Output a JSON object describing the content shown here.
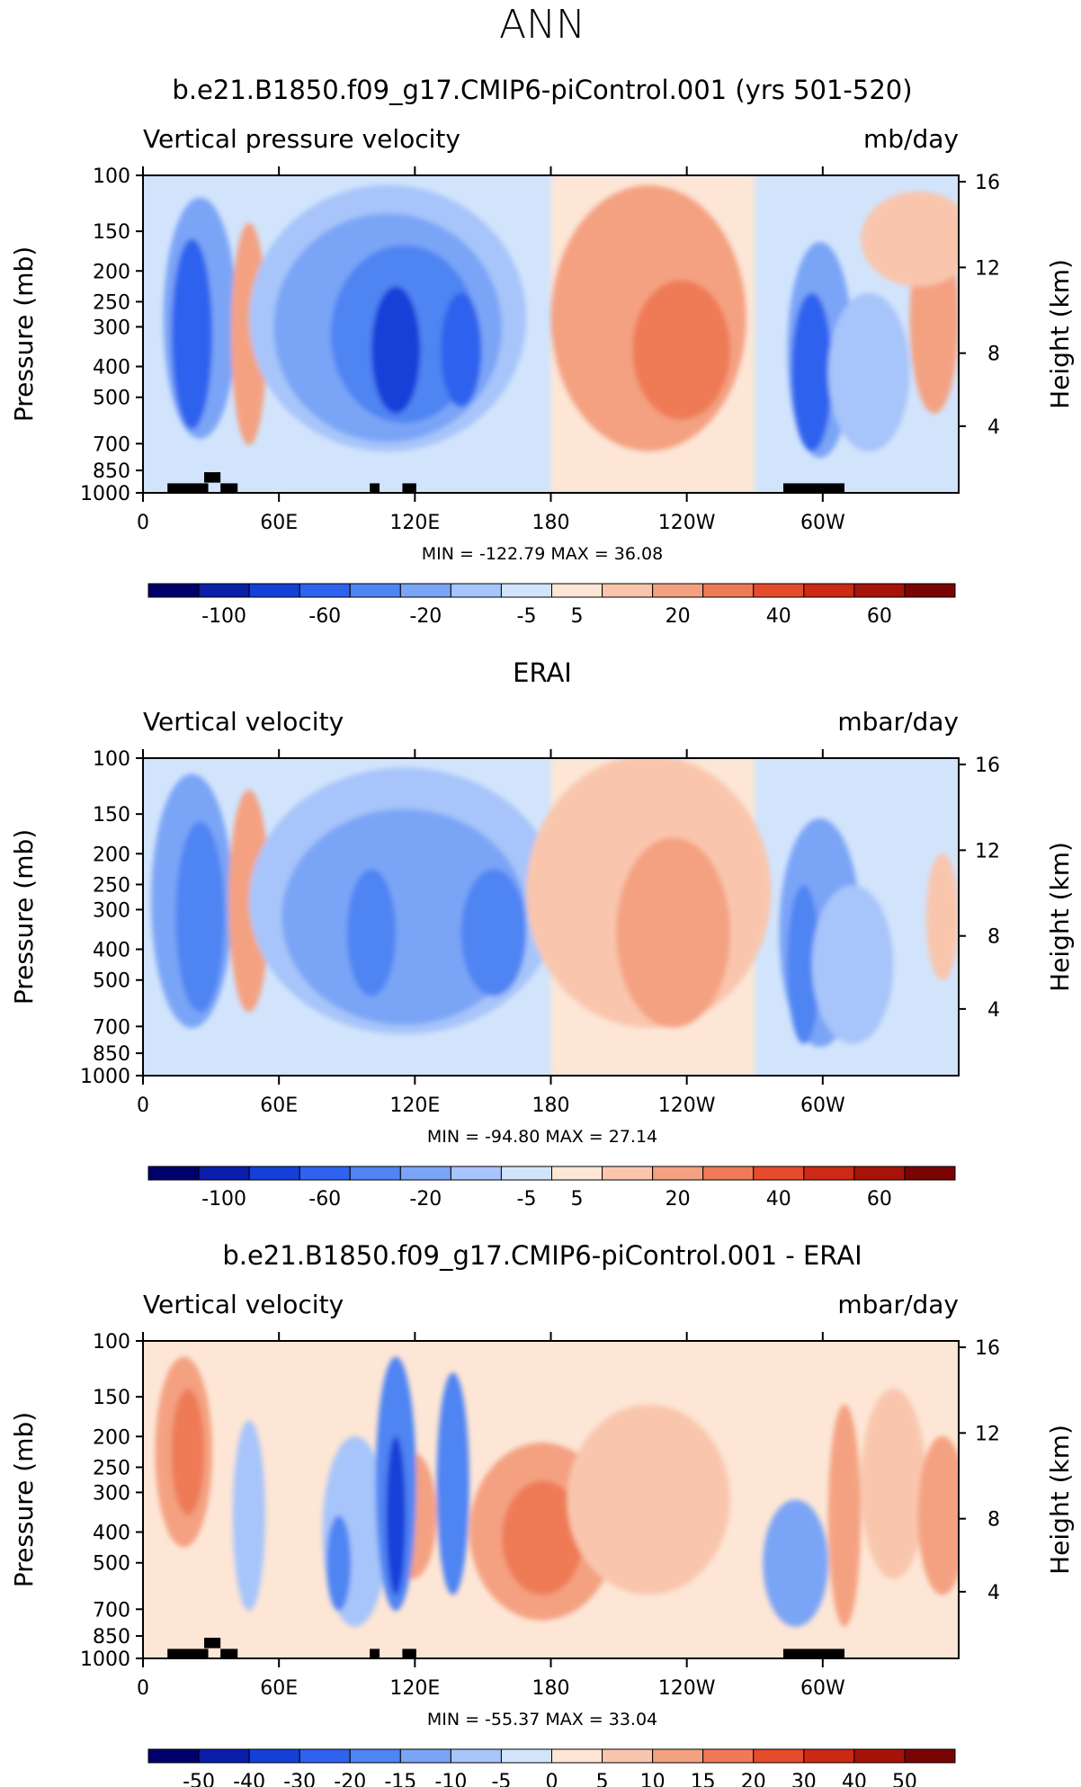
{
  "figure_title": "ANN",
  "chart_data": [
    {
      "type": "heatmap",
      "title": "b.e21.B1850.f09_g17.CMIP6-piControl.001 (yrs 501-520)",
      "subtitle_left": "Vertical pressure velocity",
      "units": "mb/day",
      "ylabel": "Pressure (mb)",
      "ylabel_right": "Height (km)",
      "y_ticks": [
        "100",
        "150",
        "200",
        "250",
        "300",
        "400",
        "500",
        "700",
        "850",
        "1000"
      ],
      "y_ticks_right": [
        "16",
        "12",
        "8",
        "4"
      ],
      "x_ticks": [
        "0",
        "60E",
        "120E",
        "180",
        "120W",
        "60W"
      ],
      "min": "-122.79",
      "max": "36.08",
      "colorbar_labels": [
        "-100",
        "-60",
        "-20",
        "-5",
        "5",
        "20",
        "40",
        "60"
      ],
      "colorbar_colors": [
        "#00006d",
        "#0a1eaa",
        "#1440d8",
        "#2f62ee",
        "#4f84f3",
        "#7aa4f6",
        "#a7c5fa",
        "#d2e4fc",
        "#fde6d6",
        "#f9c6ad",
        "#f4a181",
        "#ef7a57",
        "#e44c2c",
        "#cc2a14",
        "#a61409",
        "#7a0404"
      ]
    },
    {
      "type": "heatmap",
      "title": "ERAI",
      "subtitle_left": "Vertical velocity",
      "units": "mbar/day",
      "ylabel": "Pressure (mb)",
      "ylabel_right": "Height (km)",
      "y_ticks": [
        "100",
        "150",
        "200",
        "250",
        "300",
        "400",
        "500",
        "700",
        "850",
        "1000"
      ],
      "y_ticks_right": [
        "16",
        "12",
        "8",
        "4"
      ],
      "x_ticks": [
        "0",
        "60E",
        "120E",
        "180",
        "120W",
        "60W"
      ],
      "min": "-94.80",
      "max": "27.14",
      "colorbar_labels": [
        "-100",
        "-60",
        "-20",
        "-5",
        "5",
        "20",
        "40",
        "60"
      ],
      "colorbar_colors": [
        "#00006d",
        "#0a1eaa",
        "#1440d8",
        "#2f62ee",
        "#4f84f3",
        "#7aa4f6",
        "#a7c5fa",
        "#d2e4fc",
        "#fde6d6",
        "#f9c6ad",
        "#f4a181",
        "#ef7a57",
        "#e44c2c",
        "#cc2a14",
        "#a61409",
        "#7a0404"
      ]
    },
    {
      "type": "heatmap",
      "title": "b.e21.B1850.f09_g17.CMIP6-piControl.001 - ERAI",
      "subtitle_left": "Vertical velocity",
      "units": "mbar/day",
      "ylabel": "Pressure (mb)",
      "ylabel_right": "Height (km)",
      "y_ticks": [
        "100",
        "150",
        "200",
        "250",
        "300",
        "400",
        "500",
        "700",
        "850",
        "1000"
      ],
      "y_ticks_right": [
        "16",
        "12",
        "8",
        "4"
      ],
      "x_ticks": [
        "0",
        "60E",
        "120E",
        "180",
        "120W",
        "60W"
      ],
      "min": "-55.37",
      "max": "33.04",
      "colorbar_labels": [
        "-50",
        "-40",
        "-30",
        "-20",
        "-15",
        "-10",
        "-5",
        "0",
        "5",
        "10",
        "15",
        "20",
        "30",
        "40",
        "50"
      ],
      "colorbar_colors": [
        "#00006d",
        "#0a1eaa",
        "#1440d8",
        "#2f62ee",
        "#4f84f3",
        "#7aa4f6",
        "#a7c5fa",
        "#d2e4fc",
        "#fde6d6",
        "#f9c6ad",
        "#f4a181",
        "#ef7a57",
        "#e44c2c",
        "#cc2a14",
        "#a61409",
        "#7a0404"
      ]
    }
  ]
}
